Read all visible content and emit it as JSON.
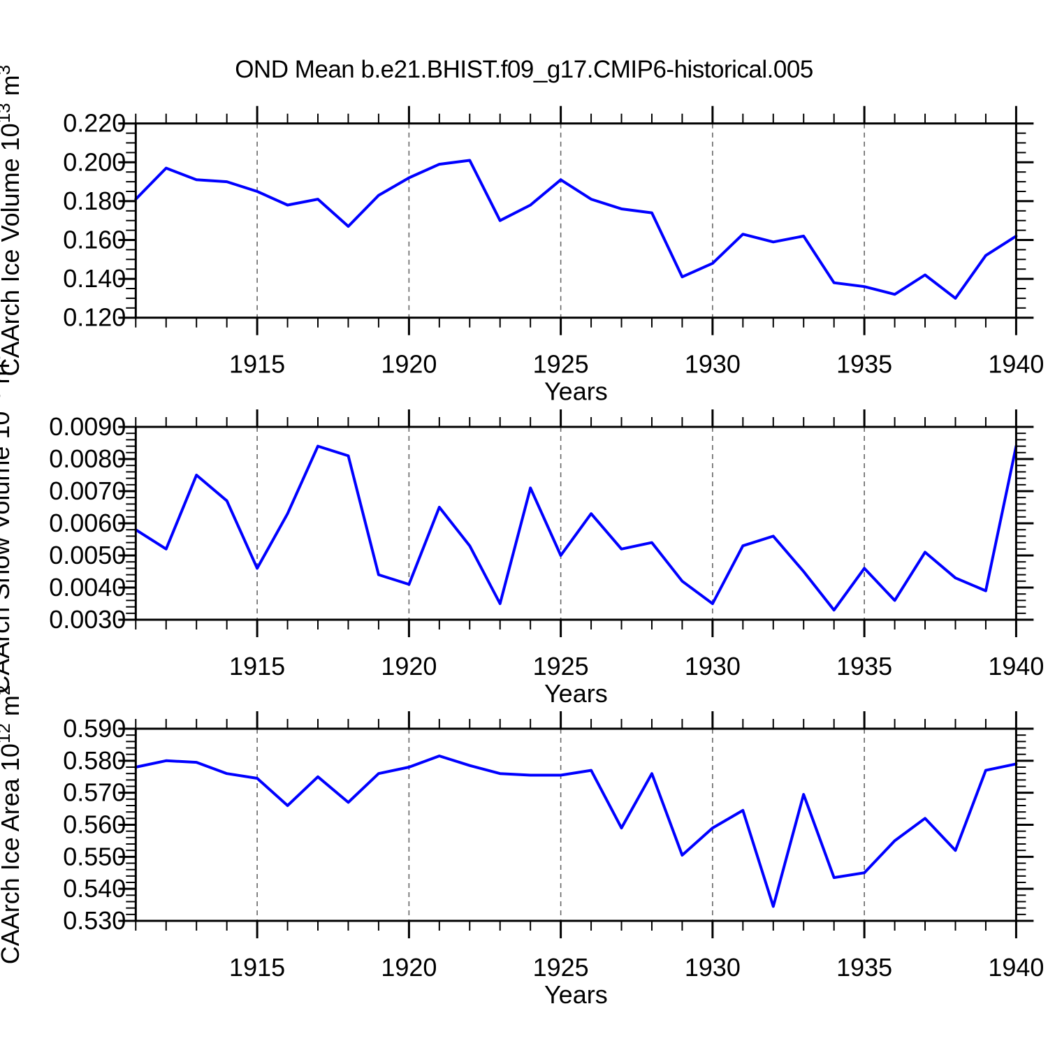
{
  "title": "OND Mean b.e21.BHIST.f09_g17.CMIP6-historical.005",
  "colors": {
    "line": "#0000ff",
    "axis": "#000000",
    "grid": "#666666",
    "background": "#ffffff"
  },
  "x_axis": {
    "label": "Years",
    "range": [
      1911,
      1940
    ],
    "major_ticks": [
      1915,
      1920,
      1925,
      1930,
      1935,
      1940
    ],
    "grid_years": [
      1915,
      1920,
      1925,
      1930,
      1935
    ],
    "minor_step": 1
  },
  "chart_data": [
    {
      "id": "caarch-ice-volume",
      "type": "line",
      "xlabel": "Years",
      "ylabel_text": "CAArch Ice Volume 10^13 m^3",
      "ylabel_segments": [
        {
          "t": "CAArch Ice Volume 10"
        },
        {
          "t": "13",
          "sup": true
        },
        {
          "t": " m"
        },
        {
          "t": "3",
          "sup": true
        }
      ],
      "ylim": [
        0.12,
        0.22
      ],
      "yticks": [
        0.12,
        0.14,
        0.16,
        0.18,
        0.2,
        0.22
      ],
      "ytick_labels": [
        "0.120",
        "0.140",
        "0.160",
        "0.180",
        "0.200",
        "0.220"
      ],
      "y_minor_step": 0.005,
      "x": [
        1911,
        1912,
        1913,
        1914,
        1915,
        1916,
        1917,
        1918,
        1919,
        1920,
        1921,
        1922,
        1923,
        1924,
        1925,
        1926,
        1927,
        1928,
        1929,
        1930,
        1931,
        1932,
        1933,
        1934,
        1935,
        1936,
        1937,
        1938,
        1939,
        1940
      ],
      "values": [
        0.181,
        0.197,
        0.191,
        0.19,
        0.185,
        0.178,
        0.181,
        0.167,
        0.183,
        0.192,
        0.199,
        0.201,
        0.17,
        0.178,
        0.191,
        0.181,
        0.176,
        0.174,
        0.141,
        0.148,
        0.163,
        0.159,
        0.162,
        0.138,
        0.136,
        0.132,
        0.142,
        0.13,
        0.152,
        0.162
      ]
    },
    {
      "id": "caarch-snow-volume",
      "type": "line",
      "xlabel": "Years",
      "ylabel_text": "CAArch Snow Volume 10^13 m^3",
      "ylabel_segments": [
        {
          "t": "CAArch Snow Volume 10"
        },
        {
          "t": "13",
          "sup": true
        },
        {
          "t": " m"
        },
        {
          "t": "3",
          "sup": true
        }
      ],
      "ylim": [
        0.003,
        0.009
      ],
      "yticks": [
        0.003,
        0.004,
        0.005,
        0.006,
        0.007,
        0.008,
        0.009
      ],
      "ytick_labels": [
        "0.0030",
        "0.0040",
        "0.0050",
        "0.0060",
        "0.0070",
        "0.0080",
        "0.0090"
      ],
      "y_minor_step": 0.0002,
      "x": [
        1911,
        1912,
        1913,
        1914,
        1915,
        1916,
        1917,
        1918,
        1919,
        1920,
        1921,
        1922,
        1923,
        1924,
        1925,
        1926,
        1927,
        1928,
        1929,
        1930,
        1931,
        1932,
        1933,
        1934,
        1935,
        1936,
        1937,
        1938,
        1939,
        1940
      ],
      "values": [
        0.0058,
        0.0052,
        0.0075,
        0.0067,
        0.0046,
        0.0063,
        0.0084,
        0.0081,
        0.0044,
        0.0041,
        0.0065,
        0.0053,
        0.0035,
        0.0071,
        0.005,
        0.0063,
        0.0052,
        0.0054,
        0.0042,
        0.0035,
        0.0053,
        0.0056,
        0.0045,
        0.0033,
        0.0046,
        0.0036,
        0.0051,
        0.0043,
        0.0039,
        0.0084
      ]
    },
    {
      "id": "caarch-ice-area",
      "type": "line",
      "xlabel": "Years",
      "ylabel_text": "CAArch Ice Area 10^12 m^2",
      "ylabel_segments": [
        {
          "t": "CAArch Ice Area 10"
        },
        {
          "t": "12",
          "sup": true
        },
        {
          "t": " m"
        },
        {
          "t": "2",
          "sup": true
        }
      ],
      "ylim": [
        0.53,
        0.59
      ],
      "yticks": [
        0.53,
        0.54,
        0.55,
        0.56,
        0.57,
        0.58,
        0.59
      ],
      "ytick_labels": [
        "0.530",
        "0.540",
        "0.550",
        "0.560",
        "0.570",
        "0.580",
        "0.590"
      ],
      "y_minor_step": 0.002,
      "x": [
        1911,
        1912,
        1913,
        1914,
        1915,
        1916,
        1917,
        1918,
        1919,
        1920,
        1921,
        1922,
        1923,
        1924,
        1925,
        1926,
        1927,
        1928,
        1929,
        1930,
        1931,
        1932,
        1933,
        1934,
        1935,
        1936,
        1937,
        1938,
        1939,
        1940
      ],
      "values": [
        0.578,
        0.58,
        0.5795,
        0.576,
        0.5745,
        0.566,
        0.575,
        0.567,
        0.576,
        0.578,
        0.5815,
        0.5785,
        0.576,
        0.5755,
        0.5755,
        0.577,
        0.559,
        0.576,
        0.5505,
        0.559,
        0.5645,
        0.5345,
        0.5695,
        0.5435,
        0.545,
        0.555,
        0.562,
        0.552,
        0.577,
        0.579
      ]
    }
  ]
}
